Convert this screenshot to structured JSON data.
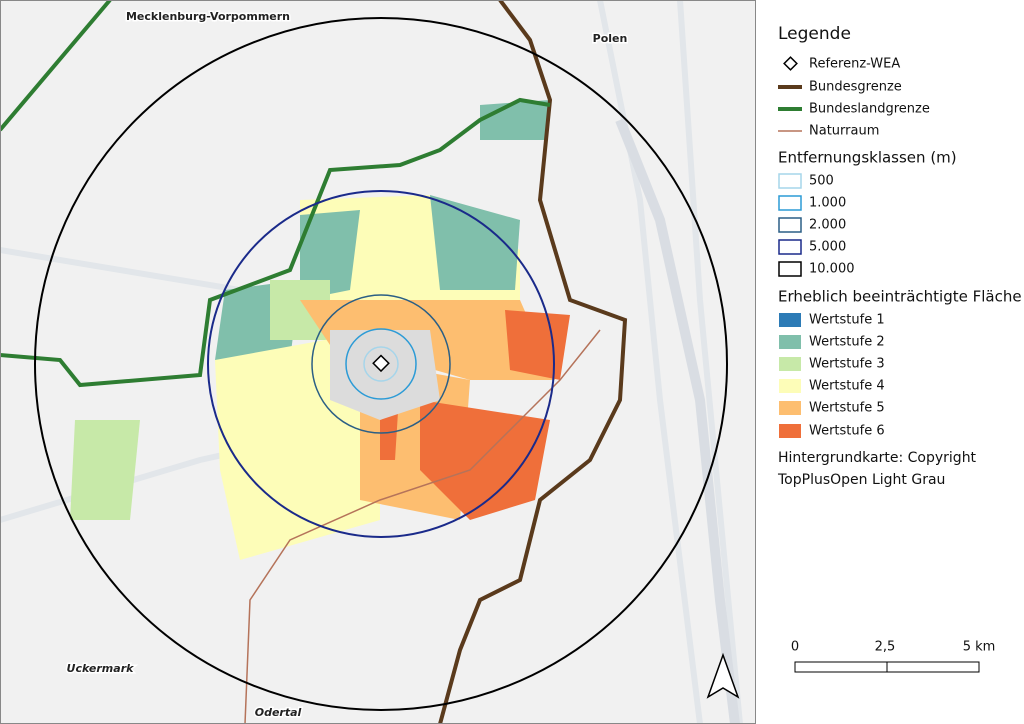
{
  "map": {
    "labels": [
      "Mecklenburg-Vorpommern",
      "Polen",
      "Uckermark",
      "Odertal"
    ]
  },
  "legend": {
    "title": "Legende",
    "lines": [
      "Referenz-WEA",
      "Bundesgrenze",
      "Bundeslandgrenze",
      "Naturraum"
    ],
    "groups": [
      {
        "title": "Entfernungsklassen (m)",
        "items": [
          "500",
          "1.000",
          "2.000",
          "5.000",
          "10.000"
        ]
      },
      {
        "title": "Erheblich beeinträchtigte Fläche",
        "items": [
          "Wertstufe 1",
          "Wertstufe 2",
          "Wertstufe 3",
          "Wertstufe 4",
          "Wertstufe 5",
          "Wertstufe 6"
        ]
      }
    ],
    "credit": [
      "Hintergrundkarte: Copyright",
      "TopPlusOpen Light Grau"
    ]
  },
  "scale_bar": {
    "labels": [
      "0",
      "2,5",
      "5 km"
    ]
  }
}
